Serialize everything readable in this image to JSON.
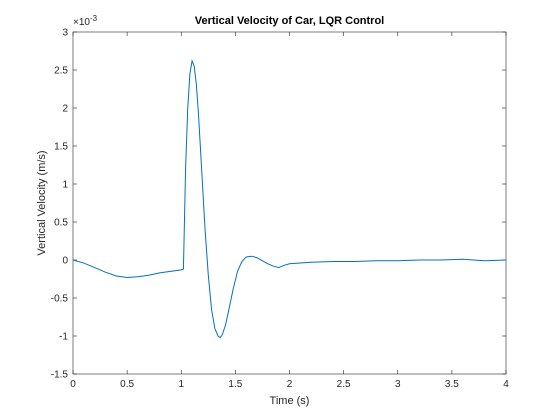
{
  "chart_data": {
    "type": "line",
    "title": "Vertical Velocity of Car, LQR Control",
    "x_label": "Time (s)",
    "y_label": "Vertical Velocity (m/s)",
    "y_multiplier_base": "×10",
    "y_multiplier_exponent": "-3",
    "x": [
      0,
      0.1,
      0.2,
      0.3,
      0.4,
      0.5,
      0.6,
      0.7,
      0.8,
      0.9,
      1.0,
      1.02,
      1.04,
      1.06,
      1.08,
      1.1,
      1.12,
      1.14,
      1.16,
      1.18,
      1.2,
      1.22,
      1.25,
      1.28,
      1.31,
      1.34,
      1.36,
      1.38,
      1.41,
      1.44,
      1.48,
      1.52,
      1.56,
      1.6,
      1.65,
      1.7,
      1.75,
      1.8,
      1.85,
      1.9,
      1.95,
      2.0,
      2.2,
      2.4,
      2.6,
      2.8,
      3.0,
      3.2,
      3.4,
      3.6,
      3.8,
      4.0
    ],
    "series": [
      {
        "color": "#0072bd",
        "values": [
          0,
          -0.04,
          -0.1,
          -0.16,
          -0.21,
          -0.23,
          -0.22,
          -0.2,
          -0.17,
          -0.15,
          -0.13,
          -0.12,
          1.2,
          2.0,
          2.45,
          2.62,
          2.55,
          2.3,
          1.9,
          1.4,
          0.9,
          0.4,
          -0.2,
          -0.65,
          -0.9,
          -1.0,
          -1.02,
          -0.98,
          -0.85,
          -0.65,
          -0.38,
          -0.15,
          -0.02,
          0.04,
          0.05,
          0.03,
          -0.01,
          -0.05,
          -0.08,
          -0.1,
          -0.07,
          -0.05,
          -0.03,
          -0.02,
          -0.02,
          -0.01,
          -0.01,
          0,
          0,
          0.01,
          -0.01,
          0
        ]
      }
    ],
    "xlim": [
      0,
      4
    ],
    "ylim": [
      -1.5,
      3
    ],
    "xticks": [
      0,
      0.5,
      1,
      1.5,
      2,
      2.5,
      3,
      3.5,
      4
    ],
    "yticks": [
      -1.5,
      -1,
      -0.5,
      0,
      0.5,
      1,
      1.5,
      2,
      2.5,
      3
    ],
    "grid": false
  }
}
